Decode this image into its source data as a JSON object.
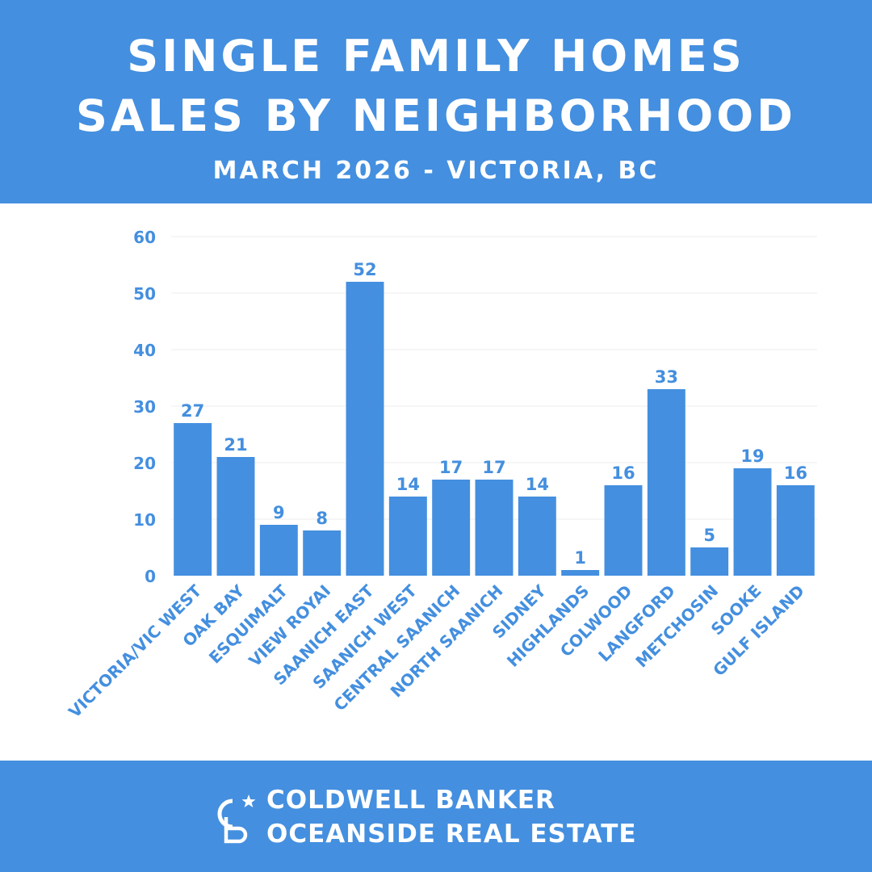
{
  "header": {
    "title_line1": "SINGLE FAMILY HOMES",
    "title_line2": "SALES BY NEIGHBORHOOD",
    "subtitle": "MARCH 2026 - VICTORIA, BC"
  },
  "footer": {
    "brand_line1": "COLDWELL BANKER",
    "brand_line2": "OCEANSIDE REAL ESTATE",
    "logo_icon": "coldwell-banker-cb-logo-icon"
  },
  "colors": {
    "brand_blue": "#448fdf",
    "bar": "#448fdf",
    "label": "#448fdf",
    "grid": "#eeeeee"
  },
  "chart_data": {
    "type": "bar",
    "categories": [
      "VICTORIA/VIC WEST",
      "OAK BAY",
      "ESQUIMALT",
      "VIEW ROYAI",
      "SAANICH EAST",
      "SAANICH WEST",
      "CENTRAL SAANICH",
      "NORTH SAANICH",
      "SIDNEY",
      "HIGHLANDS",
      "COLWOOD",
      "LANGFORD",
      "METCHOSIN",
      "SOOKE",
      "GULF ISLAND"
    ],
    "values": [
      27,
      21,
      9,
      8,
      52,
      14,
      17,
      17,
      14,
      1,
      16,
      33,
      5,
      19,
      16
    ],
    "yticks": [
      0,
      10,
      20,
      30,
      40,
      50,
      60
    ],
    "ylim": [
      0,
      60
    ],
    "grid": true,
    "data_labels": true,
    "title": "",
    "xlabel": "",
    "ylabel": ""
  }
}
